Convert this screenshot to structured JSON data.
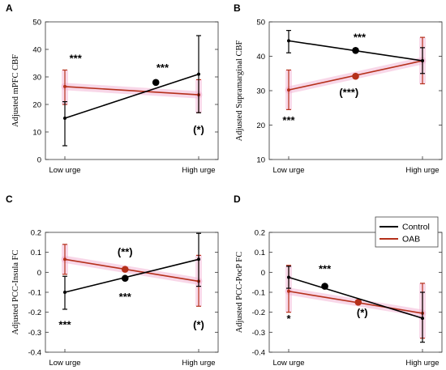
{
  "colors": {
    "control": "#000000",
    "oab": "#b5301a",
    "oab_band": "#f4b7d6",
    "axis": "#333333"
  },
  "legend": {
    "control_label": "Control",
    "oab_label": "OAB"
  },
  "chart_data": [
    {
      "panel": "A",
      "type": "line",
      "categories": [
        "Low urge",
        "High urge"
      ],
      "ylabel": "Adjusted mPFC CBF",
      "ylim": [
        0,
        50
      ],
      "yticks": [
        0,
        10,
        20,
        30,
        40,
        50
      ],
      "tick_labels": [
        "0",
        "10",
        "20",
        "30",
        "40",
        "50"
      ],
      "series": [
        {
          "name": "Control",
          "values": [
            15,
            31
          ],
          "err_low": [
            5,
            17
          ],
          "err_high": [
            21,
            45
          ],
          "mid_marker": [
            0.68,
            28
          ]
        },
        {
          "name": "OAB",
          "values": [
            26.5,
            23.5
          ],
          "err_low": [
            20,
            17
          ],
          "err_high": [
            32.5,
            29
          ]
        }
      ],
      "annotations": [
        {
          "text": "***",
          "x": 0.08,
          "y": 35.5
        },
        {
          "text": "***",
          "x": 0.73,
          "y": 32
        },
        {
          "text": "(*)",
          "x": 1.0,
          "y": 9.5
        }
      ]
    },
    {
      "panel": "B",
      "type": "line",
      "categories": [
        "Low urge",
        "High urge"
      ],
      "ylabel": "Adjusted Supramarginal CBF",
      "ylim": [
        10,
        50
      ],
      "yticks": [
        10,
        20,
        30,
        40,
        50
      ],
      "tick_labels": [
        "10",
        "20",
        "30",
        "40",
        "50"
      ],
      "series": [
        {
          "name": "Control",
          "values": [
            44.5,
            38.7
          ],
          "err_low": [
            41,
            35
          ],
          "err_high": [
            47.5,
            42.5
          ],
          "mid_marker": [
            0.5,
            41.7
          ]
        },
        {
          "name": "OAB",
          "values": [
            30.2,
            38.7
          ],
          "err_low": [
            24.5,
            32
          ],
          "err_high": [
            36,
            45.5
          ],
          "mid_marker": [
            0.5,
            34.2
          ]
        }
      ],
      "annotations": [
        {
          "text": "***",
          "x": 0.53,
          "y": 44.5
        },
        {
          "text": "(***)",
          "x": 0.45,
          "y": 28.5
        },
        {
          "text": "***",
          "x": 0.0,
          "y": 20.3
        }
      ]
    },
    {
      "panel": "C",
      "type": "line",
      "categories": [
        "Low urge",
        "High urge"
      ],
      "ylabel": "Adjusted PCC-Insula FC",
      "ylim": [
        -0.4,
        0.2
      ],
      "yticks": [
        -0.4,
        -0.3,
        -0.2,
        -0.1,
        0,
        0.1,
        0.2
      ],
      "tick_labels": [
        "-0.4",
        "-0.3",
        "-0.2",
        "-0.1",
        "0",
        "0.1",
        "0.2"
      ],
      "series": [
        {
          "name": "Control",
          "values": [
            -0.1,
            0.065
          ],
          "err_low": [
            -0.185,
            -0.07
          ],
          "err_high": [
            -0.02,
            0.195
          ],
          "mid_marker": [
            0.45,
            -0.03
          ]
        },
        {
          "name": "OAB",
          "values": [
            0.065,
            -0.045
          ],
          "err_low": [
            -0.01,
            -0.17
          ],
          "err_high": [
            0.14,
            0.085
          ],
          "mid_marker": [
            0.45,
            0.015
          ]
        }
      ],
      "annotations": [
        {
          "text": "(**)",
          "x": 0.45,
          "y": 0.085
        },
        {
          "text": "***",
          "x": 0.45,
          "y": -0.14
        },
        {
          "text": "***",
          "x": 0.0,
          "y": -0.28
        },
        {
          "text": "(*)",
          "x": 1.0,
          "y": -0.28
        }
      ]
    },
    {
      "panel": "D",
      "type": "line",
      "categories": [
        "Low urge",
        "High urge"
      ],
      "ylabel": "Adjusted PCC-PocP FC",
      "ylim": [
        -0.4,
        0.2
      ],
      "yticks": [
        -0.4,
        -0.3,
        -0.2,
        -0.1,
        0,
        0.1,
        0.2
      ],
      "tick_labels": [
        "-0.4",
        "-0.3",
        "-0.2",
        "-0.1",
        "0",
        "0.1",
        "0.2"
      ],
      "series": [
        {
          "name": "Control",
          "values": [
            -0.025,
            -0.23
          ],
          "err_low": [
            -0.08,
            -0.35
          ],
          "err_high": [
            0.03,
            -0.1
          ],
          "mid_marker": [
            0.27,
            -0.07
          ]
        },
        {
          "name": "OAB",
          "values": [
            -0.095,
            -0.205
          ],
          "err_low": [
            -0.2,
            -0.33
          ],
          "err_high": [
            0.035,
            -0.055
          ],
          "mid_marker": [
            0.52,
            -0.15
          ]
        }
      ],
      "annotations": [
        {
          "text": "***",
          "x": 0.27,
          "y": 0.0
        },
        {
          "text": "(*)",
          "x": 0.55,
          "y": -0.22
        },
        {
          "text": "*",
          "x": 0.0,
          "y": -0.25
        }
      ],
      "legend": true
    }
  ]
}
